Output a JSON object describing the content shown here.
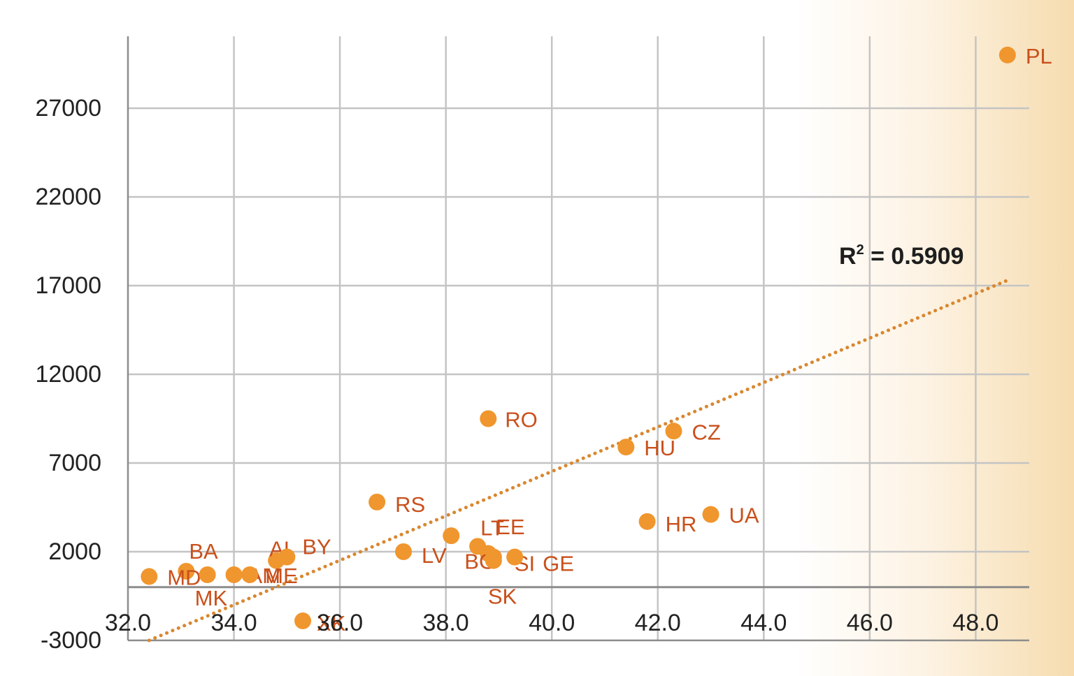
{
  "chart_data": {
    "type": "scatter",
    "title": "",
    "xlabel": "",
    "ylabel": "",
    "xlim": [
      32.0,
      49.0
    ],
    "ylim": [
      -3000,
      32000
    ],
    "x_ticks": [
      32.0,
      34.0,
      36.0,
      38.0,
      40.0,
      42.0,
      44.0,
      46.0,
      48.0
    ],
    "x_tick_labels": [
      "32.0",
      "34.0",
      "36.0",
      "38.0",
      "40.0",
      "42.0",
      "44.0",
      "46.0",
      "48.0"
    ],
    "y_ticks": [
      -3000,
      2000,
      7000,
      12000,
      17000,
      22000,
      27000
    ],
    "y_tick_labels": [
      "-3000",
      "2000",
      "7000",
      "12000",
      "17000",
      "22000",
      "27000"
    ],
    "grid": true,
    "series": [
      {
        "points": [
          {
            "label": "PL",
            "x": 48.6,
            "y": 30000
          },
          {
            "label": "RO",
            "x": 38.8,
            "y": 9500
          },
          {
            "label": "CZ",
            "x": 42.3,
            "y": 8800
          },
          {
            "label": "HU",
            "x": 41.4,
            "y": 7900
          },
          {
            "label": "RS",
            "x": 36.7,
            "y": 4800
          },
          {
            "label": "UA",
            "x": 43.0,
            "y": 4100
          },
          {
            "label": "HR",
            "x": 41.8,
            "y": 3700
          },
          {
            "label": "LT",
            "x": 38.6,
            "y": 2300
          },
          {
            "label": "EE",
            "x": 38.1,
            "y": 2900
          },
          {
            "label": "LV",
            "x": 37.2,
            "y": 2000
          },
          {
            "label": "BG",
            "x": 38.8,
            "y": 1900
          },
          {
            "label": "SI",
            "x": 38.9,
            "y": 1700
          },
          {
            "label": "GE",
            "x": 39.3,
            "y": 1700
          },
          {
            "label": "SK",
            "x": 38.9,
            "y": 1500
          },
          {
            "label": "AL",
            "x": 34.8,
            "y": 1500
          },
          {
            "label": "BY",
            "x": 35.0,
            "y": 1700
          },
          {
            "label": "BA",
            "x": 33.1,
            "y": 900
          },
          {
            "label": "MD",
            "x": 32.4,
            "y": 600
          },
          {
            "label": "MK",
            "x": 33.5,
            "y": 700
          },
          {
            "label": "AM",
            "x": 34.0,
            "y": 700
          },
          {
            "label": "ME",
            "x": 34.3,
            "y": 700
          },
          {
            "label": "XK",
            "x": 35.3,
            "y": -1900
          }
        ]
      }
    ],
    "trendline": {
      "style": "dotted",
      "x": [
        32.4,
        48.6
      ],
      "y": [
        -3000,
        17300
      ]
    },
    "annotation": {
      "base": "R",
      "sup": "2",
      "text": " = 0.5909"
    },
    "colors": {
      "point": "#f0962e",
      "label": "#c9501c",
      "trend": "#d9872f",
      "grid": "#c4c4c4",
      "axis": "#8c8c8c"
    }
  }
}
